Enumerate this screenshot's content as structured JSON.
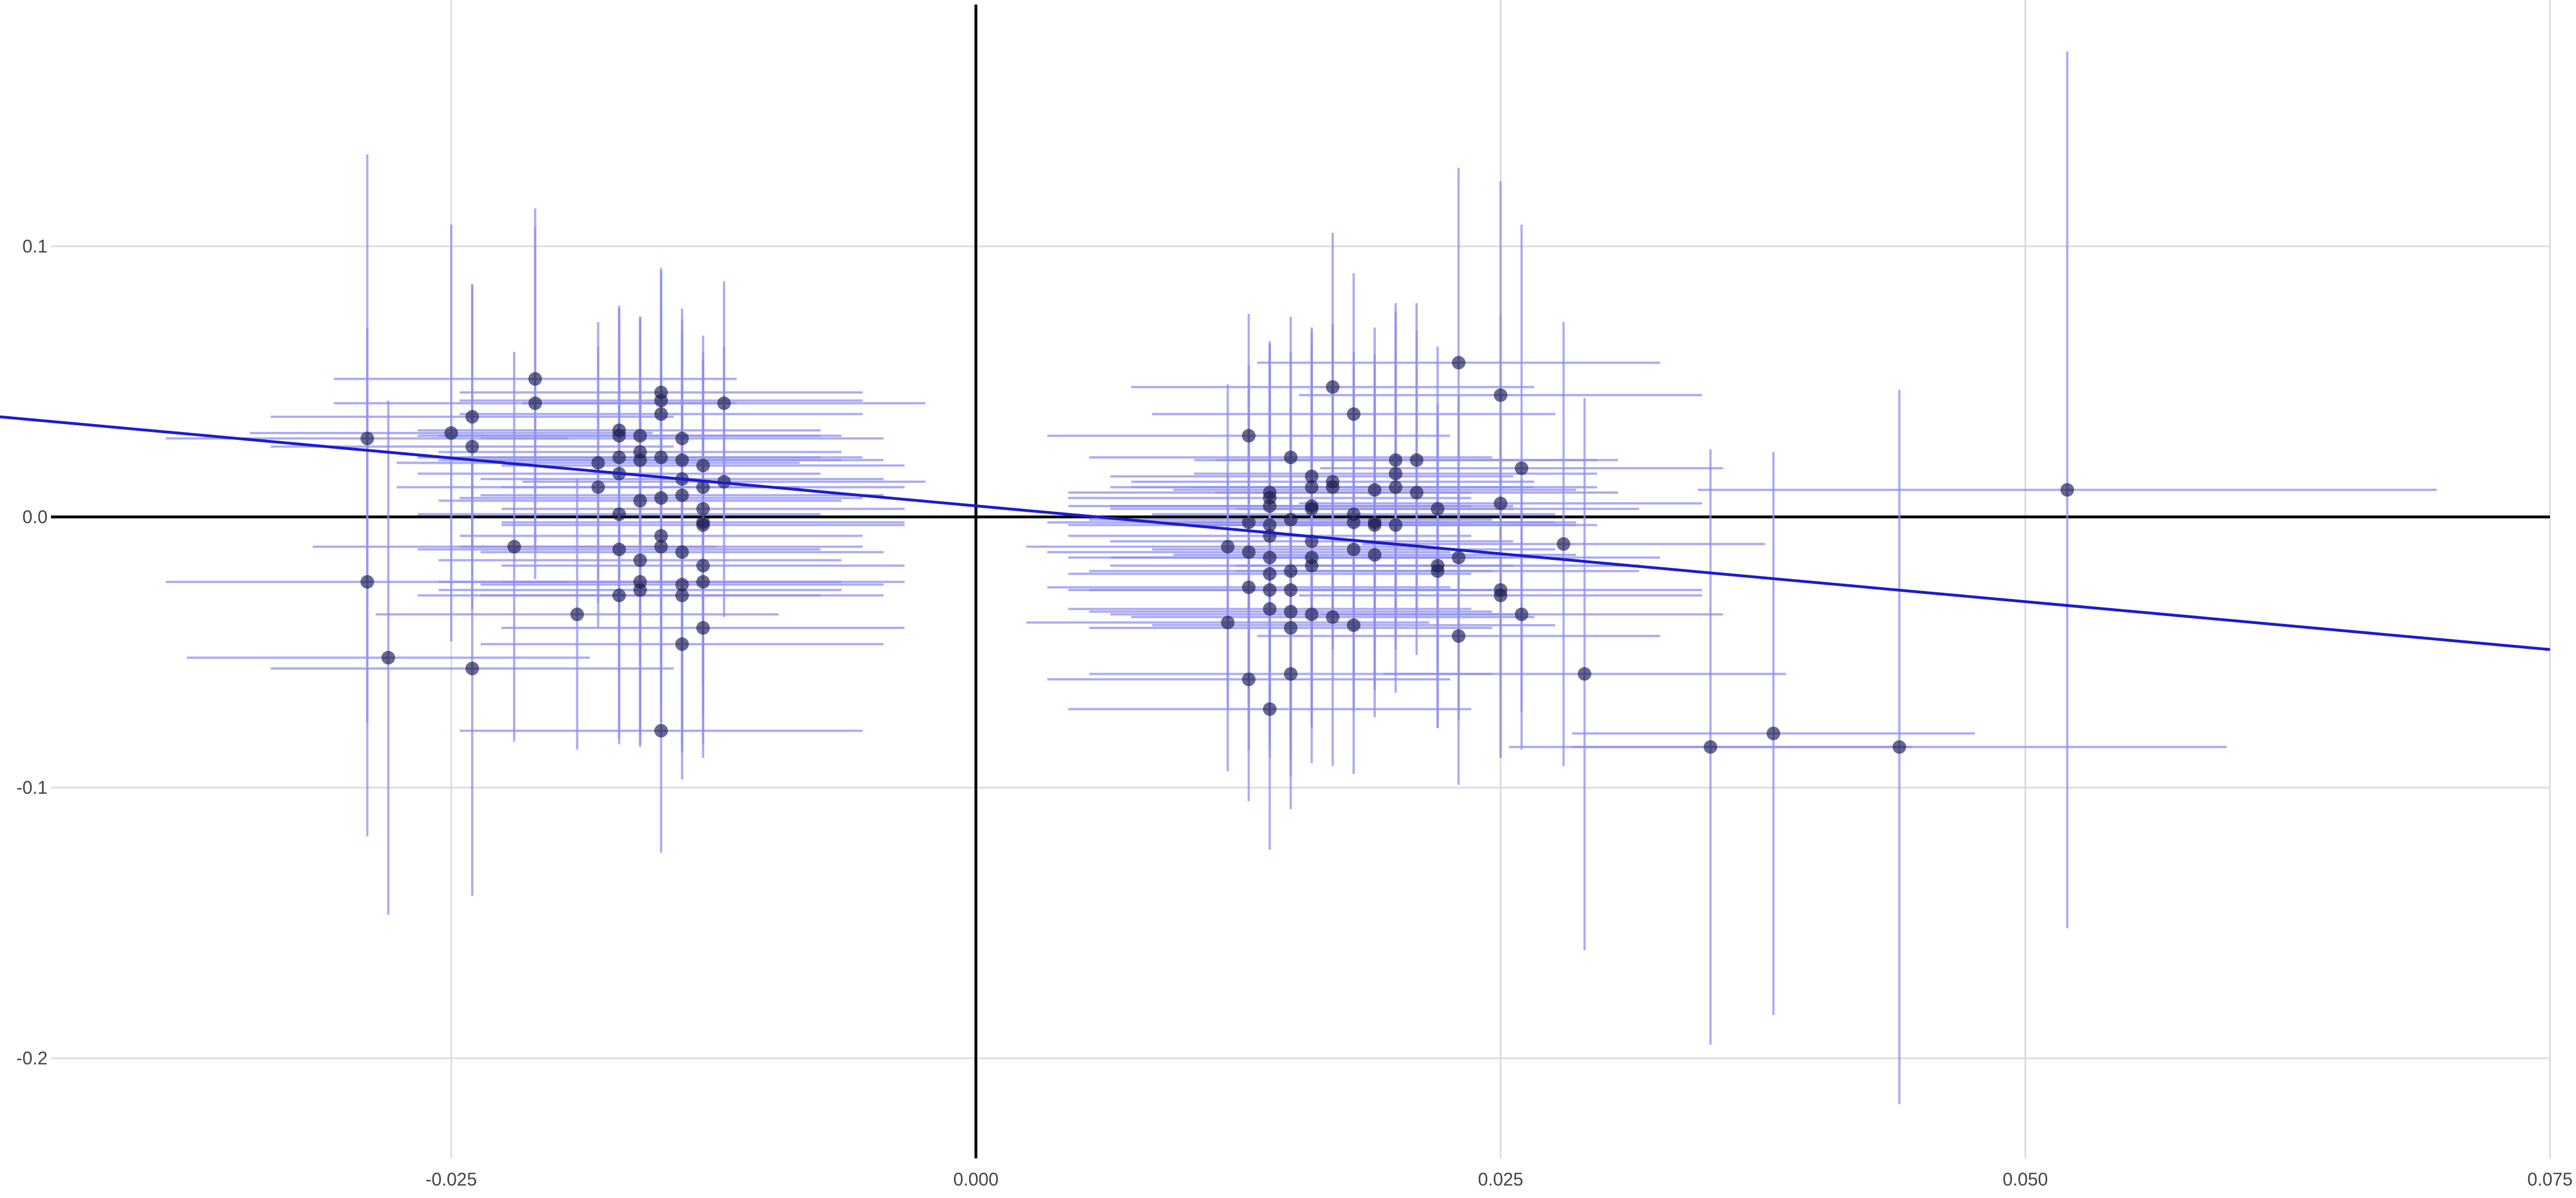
{
  "chart_data": {
    "type": "scatter",
    "title": "",
    "xlabel": "",
    "ylabel": "",
    "xlim": [
      -0.0465,
      0.075
    ],
    "ylim": [
      -0.237,
      0.191
    ],
    "x_ticks": [
      {
        "value": -0.025,
        "label": "-0.025"
      },
      {
        "value": 0.0,
        "label": "0.000"
      },
      {
        "value": 0.025,
        "label": "0.025"
      },
      {
        "value": 0.05,
        "label": "0.050"
      },
      {
        "value": 0.075,
        "label": "0.075"
      }
    ],
    "y_ticks": [
      {
        "value": 0.1,
        "label": "0.1"
      },
      {
        "value": 0.0,
        "label": "0.0"
      },
      {
        "value": -0.1,
        "label": "-0.1"
      },
      {
        "value": -0.2,
        "label": "-0.2"
      }
    ],
    "grid": true,
    "colors": {
      "point": "#1a1a4e",
      "errorbar": "#8f8ff0",
      "fit_line": "#1c1cd0",
      "axis_line": "#000000",
      "grid": "#dcdcdc"
    },
    "fit_line": {
      "x": [
        -0.0465,
        0.075
      ],
      "y": [
        0.037,
        -0.049
      ]
    },
    "points": [
      {
        "x": -0.029,
        "y": 0.029,
        "xerr": 0.0096,
        "yerr": 0.105
      },
      {
        "x": -0.029,
        "y": -0.024,
        "xerr": 0.0096,
        "yerr": 0.094
      },
      {
        "x": -0.028,
        "y": -0.052,
        "xerr": 0.0096,
        "yerr": 0.095
      },
      {
        "x": -0.025,
        "y": 0.031,
        "xerr": 0.0096,
        "yerr": 0.077
      },
      {
        "x": -0.024,
        "y": 0.037,
        "xerr": 0.0096,
        "yerr": 0.049
      },
      {
        "x": -0.024,
        "y": 0.026,
        "xerr": 0.0096,
        "yerr": 0.06
      },
      {
        "x": -0.024,
        "y": -0.056,
        "xerr": 0.0096,
        "yerr": 0.084
      },
      {
        "x": -0.022,
        "y": -0.011,
        "xerr": 0.0096,
        "yerr": 0.072
      },
      {
        "x": -0.021,
        "y": 0.051,
        "xerr": 0.0096,
        "yerr": 0.063
      },
      {
        "x": -0.021,
        "y": 0.042,
        "xerr": 0.0096,
        "yerr": 0.065
      },
      {
        "x": -0.019,
        "y": -0.036,
        "xerr": 0.0096,
        "yerr": 0.05
      },
      {
        "x": -0.018,
        "y": 0.02,
        "xerr": 0.0096,
        "yerr": 0.052
      },
      {
        "x": -0.018,
        "y": 0.011,
        "xerr": 0.0096,
        "yerr": 0.052
      },
      {
        "x": -0.017,
        "y": 0.032,
        "xerr": 0.0096,
        "yerr": 0.045
      },
      {
        "x": -0.017,
        "y": 0.03,
        "xerr": 0.0096,
        "yerr": 0.048
      },
      {
        "x": -0.017,
        "y": 0.022,
        "xerr": 0.0096,
        "yerr": 0.055
      },
      {
        "x": -0.017,
        "y": 0.016,
        "xerr": 0.0096,
        "yerr": 0.058
      },
      {
        "x": -0.017,
        "y": 0.001,
        "xerr": 0.0096,
        "yerr": 0.065
      },
      {
        "x": -0.017,
        "y": -0.012,
        "xerr": 0.0096,
        "yerr": 0.07
      },
      {
        "x": -0.017,
        "y": -0.029,
        "xerr": 0.0096,
        "yerr": 0.055
      },
      {
        "x": -0.016,
        "y": 0.03,
        "xerr": 0.0096,
        "yerr": 0.044
      },
      {
        "x": -0.016,
        "y": 0.024,
        "xerr": 0.0096,
        "yerr": 0.05
      },
      {
        "x": -0.016,
        "y": 0.021,
        "xerr": 0.0096,
        "yerr": 0.052
      },
      {
        "x": -0.016,
        "y": 0.006,
        "xerr": 0.0096,
        "yerr": 0.06
      },
      {
        "x": -0.016,
        "y": -0.016,
        "xerr": 0.0096,
        "yerr": 0.065
      },
      {
        "x": -0.016,
        "y": -0.024,
        "xerr": 0.0096,
        "yerr": 0.06
      },
      {
        "x": -0.016,
        "y": -0.027,
        "xerr": 0.0096,
        "yerr": 0.058
      },
      {
        "x": -0.015,
        "y": 0.046,
        "xerr": 0.0096,
        "yerr": 0.046
      },
      {
        "x": -0.015,
        "y": 0.043,
        "xerr": 0.0096,
        "yerr": 0.048
      },
      {
        "x": -0.015,
        "y": 0.038,
        "xerr": 0.0096,
        "yerr": 0.05
      },
      {
        "x": -0.015,
        "y": 0.022,
        "xerr": 0.0096,
        "yerr": 0.055
      },
      {
        "x": -0.015,
        "y": 0.007,
        "xerr": 0.0096,
        "yerr": 0.06
      },
      {
        "x": -0.015,
        "y": -0.007,
        "xerr": 0.0096,
        "yerr": 0.062
      },
      {
        "x": -0.015,
        "y": -0.011,
        "xerr": 0.0096,
        "yerr": 0.065
      },
      {
        "x": -0.015,
        "y": -0.079,
        "xerr": 0.0096,
        "yerr": 0.045
      },
      {
        "x": -0.014,
        "y": 0.029,
        "xerr": 0.0096,
        "yerr": 0.048
      },
      {
        "x": -0.014,
        "y": 0.021,
        "xerr": 0.0096,
        "yerr": 0.052
      },
      {
        "x": -0.014,
        "y": 0.014,
        "xerr": 0.0096,
        "yerr": 0.055
      },
      {
        "x": -0.014,
        "y": 0.008,
        "xerr": 0.0096,
        "yerr": 0.058
      },
      {
        "x": -0.014,
        "y": -0.013,
        "xerr": 0.0096,
        "yerr": 0.062
      },
      {
        "x": -0.014,
        "y": -0.025,
        "xerr": 0.0096,
        "yerr": 0.06
      },
      {
        "x": -0.014,
        "y": -0.029,
        "xerr": 0.0096,
        "yerr": 0.058
      },
      {
        "x": -0.014,
        "y": -0.047,
        "xerr": 0.0096,
        "yerr": 0.05
      },
      {
        "x": -0.013,
        "y": 0.019,
        "xerr": 0.0096,
        "yerr": 0.048
      },
      {
        "x": -0.013,
        "y": 0.011,
        "xerr": 0.0096,
        "yerr": 0.05
      },
      {
        "x": -0.013,
        "y": 0.003,
        "xerr": 0.0096,
        "yerr": 0.055
      },
      {
        "x": -0.013,
        "y": -0.002,
        "xerr": 0.0096,
        "yerr": 0.06
      },
      {
        "x": -0.013,
        "y": -0.003,
        "xerr": 0.0096,
        "yerr": 0.058
      },
      {
        "x": -0.013,
        "y": -0.018,
        "xerr": 0.0096,
        "yerr": 0.055
      },
      {
        "x": -0.013,
        "y": -0.024,
        "xerr": 0.0096,
        "yerr": 0.06
      },
      {
        "x": -0.013,
        "y": -0.041,
        "xerr": 0.0096,
        "yerr": 0.048
      },
      {
        "x": -0.012,
        "y": 0.042,
        "xerr": 0.0096,
        "yerr": 0.045
      },
      {
        "x": -0.012,
        "y": 0.013,
        "xerr": 0.0096,
        "yerr": 0.05
      },
      {
        "x": 0.012,
        "y": -0.011,
        "xerr": 0.0096,
        "yerr": 0.06
      },
      {
        "x": 0.012,
        "y": -0.039,
        "xerr": 0.0096,
        "yerr": 0.055
      },
      {
        "x": 0.013,
        "y": 0.03,
        "xerr": 0.0096,
        "yerr": 0.045
      },
      {
        "x": 0.013,
        "y": -0.002,
        "xerr": 0.0096,
        "yerr": 0.058
      },
      {
        "x": 0.013,
        "y": -0.013,
        "xerr": 0.0096,
        "yerr": 0.062
      },
      {
        "x": 0.013,
        "y": -0.026,
        "xerr": 0.0096,
        "yerr": 0.06
      },
      {
        "x": 0.013,
        "y": -0.06,
        "xerr": 0.0096,
        "yerr": 0.045
      },
      {
        "x": 0.014,
        "y": 0.009,
        "xerr": 0.0096,
        "yerr": 0.055
      },
      {
        "x": 0.014,
        "y": 0.007,
        "xerr": 0.0096,
        "yerr": 0.058
      },
      {
        "x": 0.014,
        "y": 0.004,
        "xerr": 0.0096,
        "yerr": 0.06
      },
      {
        "x": 0.014,
        "y": -0.003,
        "xerr": 0.0096,
        "yerr": 0.062
      },
      {
        "x": 0.014,
        "y": -0.007,
        "xerr": 0.0096,
        "yerr": 0.062
      },
      {
        "x": 0.014,
        "y": -0.015,
        "xerr": 0.0096,
        "yerr": 0.06
      },
      {
        "x": 0.014,
        "y": -0.021,
        "xerr": 0.0096,
        "yerr": 0.06
      },
      {
        "x": 0.014,
        "y": -0.027,
        "xerr": 0.0096,
        "yerr": 0.058
      },
      {
        "x": 0.014,
        "y": -0.034,
        "xerr": 0.0096,
        "yerr": 0.055
      },
      {
        "x": 0.014,
        "y": -0.071,
        "xerr": 0.0096,
        "yerr": 0.052
      },
      {
        "x": 0.015,
        "y": 0.022,
        "xerr": 0.0096,
        "yerr": 0.052
      },
      {
        "x": 0.015,
        "y": -0.001,
        "xerr": 0.0096,
        "yerr": 0.062
      },
      {
        "x": 0.015,
        "y": -0.02,
        "xerr": 0.0096,
        "yerr": 0.06
      },
      {
        "x": 0.015,
        "y": -0.027,
        "xerr": 0.0096,
        "yerr": 0.058
      },
      {
        "x": 0.015,
        "y": -0.035,
        "xerr": 0.0096,
        "yerr": 0.055
      },
      {
        "x": 0.015,
        "y": -0.041,
        "xerr": 0.0096,
        "yerr": 0.055
      },
      {
        "x": 0.015,
        "y": -0.058,
        "xerr": 0.0096,
        "yerr": 0.05
      },
      {
        "x": 0.016,
        "y": 0.015,
        "xerr": 0.0096,
        "yerr": 0.055
      },
      {
        "x": 0.016,
        "y": 0.011,
        "xerr": 0.0096,
        "yerr": 0.058
      },
      {
        "x": 0.016,
        "y": 0.004,
        "xerr": 0.0096,
        "yerr": 0.06
      },
      {
        "x": 0.016,
        "y": 0.003,
        "xerr": 0.0096,
        "yerr": 0.06
      },
      {
        "x": 0.016,
        "y": -0.009,
        "xerr": 0.0096,
        "yerr": 0.062
      },
      {
        "x": 0.016,
        "y": -0.015,
        "xerr": 0.0096,
        "yerr": 0.062
      },
      {
        "x": 0.016,
        "y": -0.018,
        "xerr": 0.0096,
        "yerr": 0.06
      },
      {
        "x": 0.016,
        "y": -0.036,
        "xerr": 0.0096,
        "yerr": 0.055
      },
      {
        "x": 0.017,
        "y": 0.048,
        "xerr": 0.0096,
        "yerr": 0.057
      },
      {
        "x": 0.017,
        "y": 0.013,
        "xerr": 0.0096,
        "yerr": 0.058
      },
      {
        "x": 0.017,
        "y": 0.011,
        "xerr": 0.0096,
        "yerr": 0.06
      },
      {
        "x": 0.017,
        "y": -0.037,
        "xerr": 0.0096,
        "yerr": 0.055
      },
      {
        "x": 0.018,
        "y": 0.038,
        "xerr": 0.0096,
        "yerr": 0.052
      },
      {
        "x": 0.018,
        "y": 0.001,
        "xerr": 0.0096,
        "yerr": 0.06
      },
      {
        "x": 0.018,
        "y": -0.002,
        "xerr": 0.0096,
        "yerr": 0.062
      },
      {
        "x": 0.018,
        "y": -0.012,
        "xerr": 0.0096,
        "yerr": 0.06
      },
      {
        "x": 0.018,
        "y": -0.04,
        "xerr": 0.0096,
        "yerr": 0.055
      },
      {
        "x": 0.019,
        "y": 0.01,
        "xerr": 0.0096,
        "yerr": 0.06
      },
      {
        "x": 0.019,
        "y": -0.002,
        "xerr": 0.0096,
        "yerr": 0.062
      },
      {
        "x": 0.019,
        "y": -0.003,
        "xerr": 0.0096,
        "yerr": 0.06
      },
      {
        "x": 0.019,
        "y": -0.014,
        "xerr": 0.0096,
        "yerr": 0.06
      },
      {
        "x": 0.02,
        "y": 0.021,
        "xerr": 0.0096,
        "yerr": 0.058
      },
      {
        "x": 0.02,
        "y": 0.016,
        "xerr": 0.0096,
        "yerr": 0.06
      },
      {
        "x": 0.02,
        "y": 0.011,
        "xerr": 0.0096,
        "yerr": 0.06
      },
      {
        "x": 0.02,
        "y": -0.003,
        "xerr": 0.0096,
        "yerr": 0.062
      },
      {
        "x": 0.021,
        "y": 0.021,
        "xerr": 0.0096,
        "yerr": 0.058
      },
      {
        "x": 0.021,
        "y": 0.009,
        "xerr": 0.0096,
        "yerr": 0.06
      },
      {
        "x": 0.022,
        "y": 0.003,
        "xerr": 0.0096,
        "yerr": 0.06
      },
      {
        "x": 0.022,
        "y": -0.018,
        "xerr": 0.0096,
        "yerr": 0.06
      },
      {
        "x": 0.022,
        "y": -0.02,
        "xerr": 0.0096,
        "yerr": 0.058
      },
      {
        "x": 0.023,
        "y": 0.057,
        "xerr": 0.0096,
        "yerr": 0.072
      },
      {
        "x": 0.023,
        "y": -0.015,
        "xerr": 0.0096,
        "yerr": 0.06
      },
      {
        "x": 0.023,
        "y": -0.044,
        "xerr": 0.0096,
        "yerr": 0.055
      },
      {
        "x": 0.025,
        "y": 0.045,
        "xerr": 0.0096,
        "yerr": 0.079
      },
      {
        "x": 0.025,
        "y": 0.005,
        "xerr": 0.0096,
        "yerr": 0.07
      },
      {
        "x": 0.025,
        "y": -0.027,
        "xerr": 0.0096,
        "yerr": 0.062
      },
      {
        "x": 0.025,
        "y": -0.029,
        "xerr": 0.0096,
        "yerr": 0.06
      },
      {
        "x": 0.026,
        "y": 0.018,
        "xerr": 0.0096,
        "yerr": 0.09
      },
      {
        "x": 0.026,
        "y": -0.036,
        "xerr": 0.0096,
        "yerr": 0.05
      },
      {
        "x": 0.028,
        "y": -0.01,
        "xerr": 0.0096,
        "yerr": 0.082
      },
      {
        "x": 0.029,
        "y": -0.058,
        "xerr": 0.0096,
        "yerr": 0.102
      },
      {
        "x": 0.035,
        "y": -0.085,
        "xerr": 0.0096,
        "yerr": 0.11
      },
      {
        "x": 0.038,
        "y": -0.08,
        "xerr": 0.0096,
        "yerr": 0.104
      },
      {
        "x": 0.044,
        "y": -0.085,
        "xerr": 0.0156,
        "yerr": 0.132
      },
      {
        "x": 0.052,
        "y": 0.01,
        "xerr": 0.0176,
        "yerr": 0.162
      }
    ]
  }
}
